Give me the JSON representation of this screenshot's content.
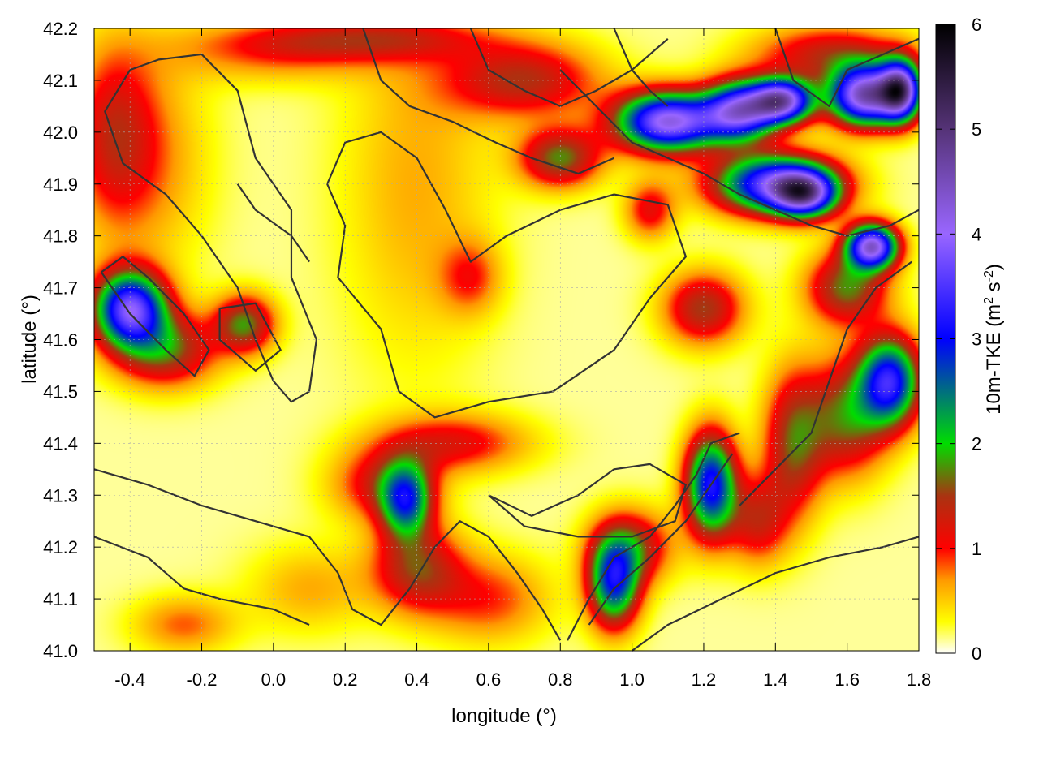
{
  "chart_data": {
    "type": "heatmap",
    "title": "",
    "xlabel": "longitude (°)",
    "ylabel": "latitude (°)",
    "xlim": [
      -0.5,
      1.8
    ],
    "ylim": [
      41.0,
      42.2
    ],
    "x_ticks": [
      "-0.4",
      "-0.2",
      "0.0",
      "0.2",
      "0.4",
      "0.6",
      "0.8",
      "1.0",
      "1.2",
      "1.4",
      "1.6",
      "1.8"
    ],
    "y_ticks": [
      "41.0",
      "41.1",
      "41.2",
      "41.3",
      "41.4",
      "41.5",
      "41.6",
      "41.7",
      "41.8",
      "41.9",
      "42.0",
      "42.1",
      "42.2"
    ],
    "grid": true,
    "colorbar": {
      "label": "10m-TKE (m² s⁻²)",
      "label_parts": {
        "main": "10m-TKE (m",
        "sup1": "2",
        "mid": " s",
        "sup2": "-2",
        "end": ")"
      },
      "range": [
        0,
        6
      ],
      "ticks": [
        "0",
        "1",
        "2",
        "3",
        "4",
        "5",
        "6"
      ],
      "stops": [
        {
          "value": 0.0,
          "color": "#ffffff"
        },
        {
          "value": 0.3,
          "color": "#ffff00"
        },
        {
          "value": 0.7,
          "color": "#ff9900"
        },
        {
          "value": 1.0,
          "color": "#ff0000"
        },
        {
          "value": 1.5,
          "color": "#aa3311"
        },
        {
          "value": 2.0,
          "color": "#00dd00"
        },
        {
          "value": 3.0,
          "color": "#0000ff"
        },
        {
          "value": 4.0,
          "color": "#9966ff"
        },
        {
          "value": 5.0,
          "color": "#553377"
        },
        {
          "value": 6.0,
          "color": "#000000"
        }
      ]
    },
    "hotspots": [
      {
        "lon": -0.4,
        "lat": 41.66,
        "tke": 3.5,
        "slon": 0.07,
        "slat": 0.05
      },
      {
        "lon": -0.3,
        "lat": 41.58,
        "tke": 1.5,
        "slon": 0.1,
        "slat": 0.05
      },
      {
        "lon": -0.45,
        "lat": 42.0,
        "tke": 0.9,
        "slon": 0.08,
        "slat": 0.12
      },
      {
        "lon": -0.35,
        "lat": 41.95,
        "tke": 0.6,
        "slon": 0.12,
        "slat": 0.15
      },
      {
        "lon": -0.08,
        "lat": 41.63,
        "tke": 1.6,
        "slon": 0.06,
        "slat": 0.04
      },
      {
        "lon": 0.4,
        "lat": 41.16,
        "tke": 1.3,
        "slon": 0.09,
        "slat": 0.06
      },
      {
        "lon": 0.37,
        "lat": 41.29,
        "tke": 2.2,
        "slon": 0.05,
        "slat": 0.05
      },
      {
        "lon": 0.3,
        "lat": 41.32,
        "tke": 1.0,
        "slon": 0.1,
        "slat": 0.05
      },
      {
        "lon": 0.5,
        "lat": 41.4,
        "tke": 1.0,
        "slon": 0.15,
        "slat": 0.04
      },
      {
        "lon": 0.55,
        "lat": 41.72,
        "tke": 0.7,
        "slon": 0.06,
        "slat": 0.05
      },
      {
        "lon": 1.2,
        "lat": 41.66,
        "tke": 1.4,
        "slon": 0.08,
        "slat": 0.05
      },
      {
        "lon": 0.95,
        "lat": 41.13,
        "tke": 2.6,
        "slon": 0.05,
        "slat": 0.06
      },
      {
        "lon": 1.22,
        "lat": 41.32,
        "tke": 3.0,
        "slon": 0.05,
        "slat": 0.07
      },
      {
        "lon": 1.0,
        "lat": 41.2,
        "tke": 1.3,
        "slon": 0.08,
        "slat": 0.05
      },
      {
        "lon": 1.1,
        "lat": 42.02,
        "tke": 4.0,
        "slon": 0.1,
        "slat": 0.04
      },
      {
        "lon": 1.3,
        "lat": 42.04,
        "tke": 3.5,
        "slon": 0.07,
        "slat": 0.04
      },
      {
        "lon": 1.4,
        "lat": 41.9,
        "tke": 3.5,
        "slon": 0.12,
        "slat": 0.04
      },
      {
        "lon": 1.48,
        "lat": 41.88,
        "tke": 3.0,
        "slon": 0.06,
        "slat": 0.03
      },
      {
        "lon": 1.42,
        "lat": 42.06,
        "tke": 4.0,
        "slon": 0.06,
        "slat": 0.03
      },
      {
        "lon": 1.65,
        "lat": 42.07,
        "tke": 4.3,
        "slon": 0.07,
        "slat": 0.04
      },
      {
        "lon": 1.75,
        "lat": 42.08,
        "tke": 4.0,
        "slon": 0.04,
        "slat": 0.04
      },
      {
        "lon": 1.67,
        "lat": 41.78,
        "tke": 4.0,
        "slon": 0.05,
        "slat": 0.03
      },
      {
        "lon": 1.6,
        "lat": 41.7,
        "tke": 1.6,
        "slon": 0.08,
        "slat": 0.05
      },
      {
        "lon": 1.72,
        "lat": 41.52,
        "tke": 3.0,
        "slon": 0.06,
        "slat": 0.06
      },
      {
        "lon": 1.6,
        "lat": 41.45,
        "tke": 1.5,
        "slon": 0.08,
        "slat": 0.08
      },
      {
        "lon": 1.45,
        "lat": 41.4,
        "tke": 1.4,
        "slon": 0.06,
        "slat": 0.1
      },
      {
        "lon": 1.35,
        "lat": 41.25,
        "tke": 1.1,
        "slon": 0.06,
        "slat": 0.06
      },
      {
        "lon": 0.4,
        "lat": 41.9,
        "tke": 0.5,
        "slon": 0.15,
        "slat": 0.25
      },
      {
        "lon": 0.7,
        "lat": 42.1,
        "tke": 1.3,
        "slon": 0.15,
        "slat": 0.05
      },
      {
        "lon": 0.8,
        "lat": 41.95,
        "tke": 1.6,
        "slon": 0.08,
        "slat": 0.04
      },
      {
        "lon": 0.25,
        "lat": 42.18,
        "tke": 1.0,
        "slon": 0.25,
        "slat": 0.03
      },
      {
        "lon": 0.6,
        "lat": 41.1,
        "tke": 0.8,
        "slon": 0.12,
        "slat": 0.06
      },
      {
        "lon": 0.1,
        "lat": 41.12,
        "tke": 0.5,
        "slon": 0.12,
        "slat": 0.06
      },
      {
        "lon": -0.25,
        "lat": 41.05,
        "tke": 0.7,
        "slon": 0.1,
        "slat": 0.04
      },
      {
        "lon": 1.05,
        "lat": 41.85,
        "tke": 1.0,
        "slon": 0.05,
        "slat": 0.04
      },
      {
        "lon": 1.55,
        "lat": 42.15,
        "tke": 1.2,
        "slon": 0.15,
        "slat": 0.04
      },
      {
        "lon": 0.0,
        "lat": 42.15,
        "tke": 0.6,
        "slon": 0.2,
        "slat": 0.04
      }
    ],
    "contours": [
      [
        [
          -0.4,
          42.12
        ],
        [
          -0.47,
          42.04
        ],
        [
          -0.42,
          41.94
        ],
        [
          -0.3,
          41.88
        ],
        [
          -0.2,
          41.8
        ],
        [
          -0.1,
          41.7
        ],
        [
          -0.05,
          41.6
        ],
        [
          0.0,
          41.52
        ],
        [
          0.05,
          41.48
        ],
        [
          0.1,
          41.5
        ],
        [
          0.12,
          41.6
        ],
        [
          0.05,
          41.72
        ],
        [
          0.05,
          41.85
        ],
        [
          -0.05,
          41.95
        ],
        [
          -0.1,
          42.08
        ],
        [
          -0.2,
          42.15
        ],
        [
          -0.32,
          42.14
        ],
        [
          -0.4,
          42.12
        ]
      ],
      [
        [
          -0.48,
          41.73
        ],
        [
          -0.4,
          41.65
        ],
        [
          -0.3,
          41.58
        ],
        [
          -0.22,
          41.53
        ],
        [
          -0.18,
          41.58
        ],
        [
          -0.25,
          41.65
        ],
        [
          -0.35,
          41.72
        ],
        [
          -0.42,
          41.76
        ],
        [
          -0.48,
          41.73
        ]
      ],
      [
        [
          -0.15,
          41.66
        ],
        [
          -0.05,
          41.67
        ],
        [
          0.02,
          41.58
        ],
        [
          -0.05,
          41.54
        ],
        [
          -0.15,
          41.6
        ],
        [
          -0.15,
          41.66
        ]
      ],
      [
        [
          0.15,
          41.9
        ],
        [
          0.2,
          41.82
        ],
        [
          0.18,
          41.72
        ],
        [
          0.3,
          41.62
        ],
        [
          0.35,
          41.5
        ],
        [
          0.45,
          41.45
        ],
        [
          0.6,
          41.48
        ],
        [
          0.78,
          41.5
        ],
        [
          0.95,
          41.58
        ],
        [
          1.05,
          41.68
        ],
        [
          1.15,
          41.76
        ],
        [
          1.1,
          41.86
        ],
        [
          0.95,
          41.88
        ],
        [
          0.8,
          41.85
        ],
        [
          0.65,
          41.8
        ],
        [
          0.55,
          41.75
        ],
        [
          0.48,
          41.85
        ],
        [
          0.4,
          41.95
        ],
        [
          0.3,
          42.0
        ],
        [
          0.2,
          41.98
        ],
        [
          0.15,
          41.9
        ]
      ],
      [
        [
          -0.5,
          41.35
        ],
        [
          -0.35,
          41.32
        ],
        [
          -0.2,
          41.28
        ],
        [
          -0.05,
          41.25
        ],
        [
          0.1,
          41.22
        ],
        [
          0.18,
          41.15
        ],
        [
          0.22,
          41.08
        ],
        [
          0.3,
          41.05
        ],
        [
          0.38,
          41.12
        ],
        [
          0.45,
          41.2
        ],
        [
          0.52,
          41.25
        ],
        [
          0.6,
          41.22
        ],
        [
          0.68,
          41.15
        ],
        [
          0.75,
          41.08
        ],
        [
          0.8,
          41.02
        ]
      ],
      [
        [
          -0.5,
          41.22
        ],
        [
          -0.35,
          41.18
        ],
        [
          -0.25,
          41.12
        ],
        [
          -0.15,
          41.1
        ],
        [
          0.0,
          41.08
        ],
        [
          0.1,
          41.05
        ]
      ],
      [
        [
          0.82,
          41.02
        ],
        [
          0.88,
          41.1
        ],
        [
          0.95,
          41.18
        ],
        [
          1.05,
          41.22
        ],
        [
          1.12,
          41.28
        ],
        [
          1.18,
          41.34
        ],
        [
          1.22,
          41.4
        ],
        [
          1.3,
          41.42
        ]
      ],
      [
        [
          0.88,
          41.05
        ],
        [
          0.95,
          41.12
        ],
        [
          1.05,
          41.18
        ],
        [
          1.15,
          41.25
        ],
        [
          1.22,
          41.32
        ],
        [
          1.28,
          41.38
        ]
      ],
      [
        [
          0.6,
          41.3
        ],
        [
          0.72,
          41.26
        ],
        [
          0.85,
          41.3
        ],
        [
          0.95,
          41.35
        ],
        [
          1.05,
          41.36
        ],
        [
          1.15,
          41.32
        ],
        [
          1.12,
          41.25
        ],
        [
          1.0,
          41.22
        ],
        [
          0.85,
          41.22
        ],
        [
          0.7,
          41.24
        ],
        [
          0.6,
          41.3
        ]
      ],
      [
        [
          1.0,
          41.0
        ],
        [
          1.1,
          41.05
        ],
        [
          1.25,
          41.1
        ],
        [
          1.4,
          41.15
        ],
        [
          1.55,
          41.18
        ],
        [
          1.7,
          41.2
        ],
        [
          1.8,
          41.22
        ]
      ],
      [
        [
          1.3,
          41.28
        ],
        [
          1.4,
          41.35
        ],
        [
          1.5,
          41.42
        ],
        [
          1.55,
          41.52
        ],
        [
          1.6,
          41.62
        ],
        [
          1.68,
          41.7
        ],
        [
          1.78,
          41.75
        ]
      ],
      [
        [
          0.8,
          42.12
        ],
        [
          0.9,
          42.05
        ],
        [
          1.0,
          41.98
        ],
        [
          1.1,
          41.95
        ],
        [
          1.2,
          41.92
        ],
        [
          1.3,
          41.88
        ],
        [
          1.4,
          41.85
        ],
        [
          1.5,
          41.82
        ],
        [
          1.6,
          41.8
        ],
        [
          1.72,
          41.82
        ],
        [
          1.8,
          41.85
        ]
      ],
      [
        [
          0.25,
          42.2
        ],
        [
          0.3,
          42.1
        ],
        [
          0.38,
          42.05
        ],
        [
          0.5,
          42.02
        ],
        [
          0.62,
          41.98
        ],
        [
          0.72,
          41.95
        ],
        [
          0.85,
          41.92
        ],
        [
          0.95,
          41.95
        ]
      ],
      [
        [
          0.55,
          42.2
        ],
        [
          0.6,
          42.12
        ],
        [
          0.7,
          42.08
        ],
        [
          0.8,
          42.05
        ],
        [
          0.9,
          42.08
        ],
        [
          1.0,
          42.12
        ],
        [
          1.1,
          42.18
        ]
      ],
      [
        [
          1.4,
          42.2
        ],
        [
          1.45,
          42.1
        ],
        [
          1.55,
          42.05
        ],
        [
          1.6,
          42.12
        ],
        [
          1.7,
          42.15
        ],
        [
          1.8,
          42.18
        ]
      ],
      [
        [
          -0.1,
          41.9
        ],
        [
          -0.05,
          41.85
        ],
        [
          0.05,
          41.8
        ],
        [
          0.1,
          41.75
        ]
      ],
      [
        [
          0.95,
          42.2
        ],
        [
          1.0,
          42.12
        ],
        [
          1.05,
          42.08
        ],
        [
          1.1,
          42.05
        ]
      ]
    ]
  }
}
